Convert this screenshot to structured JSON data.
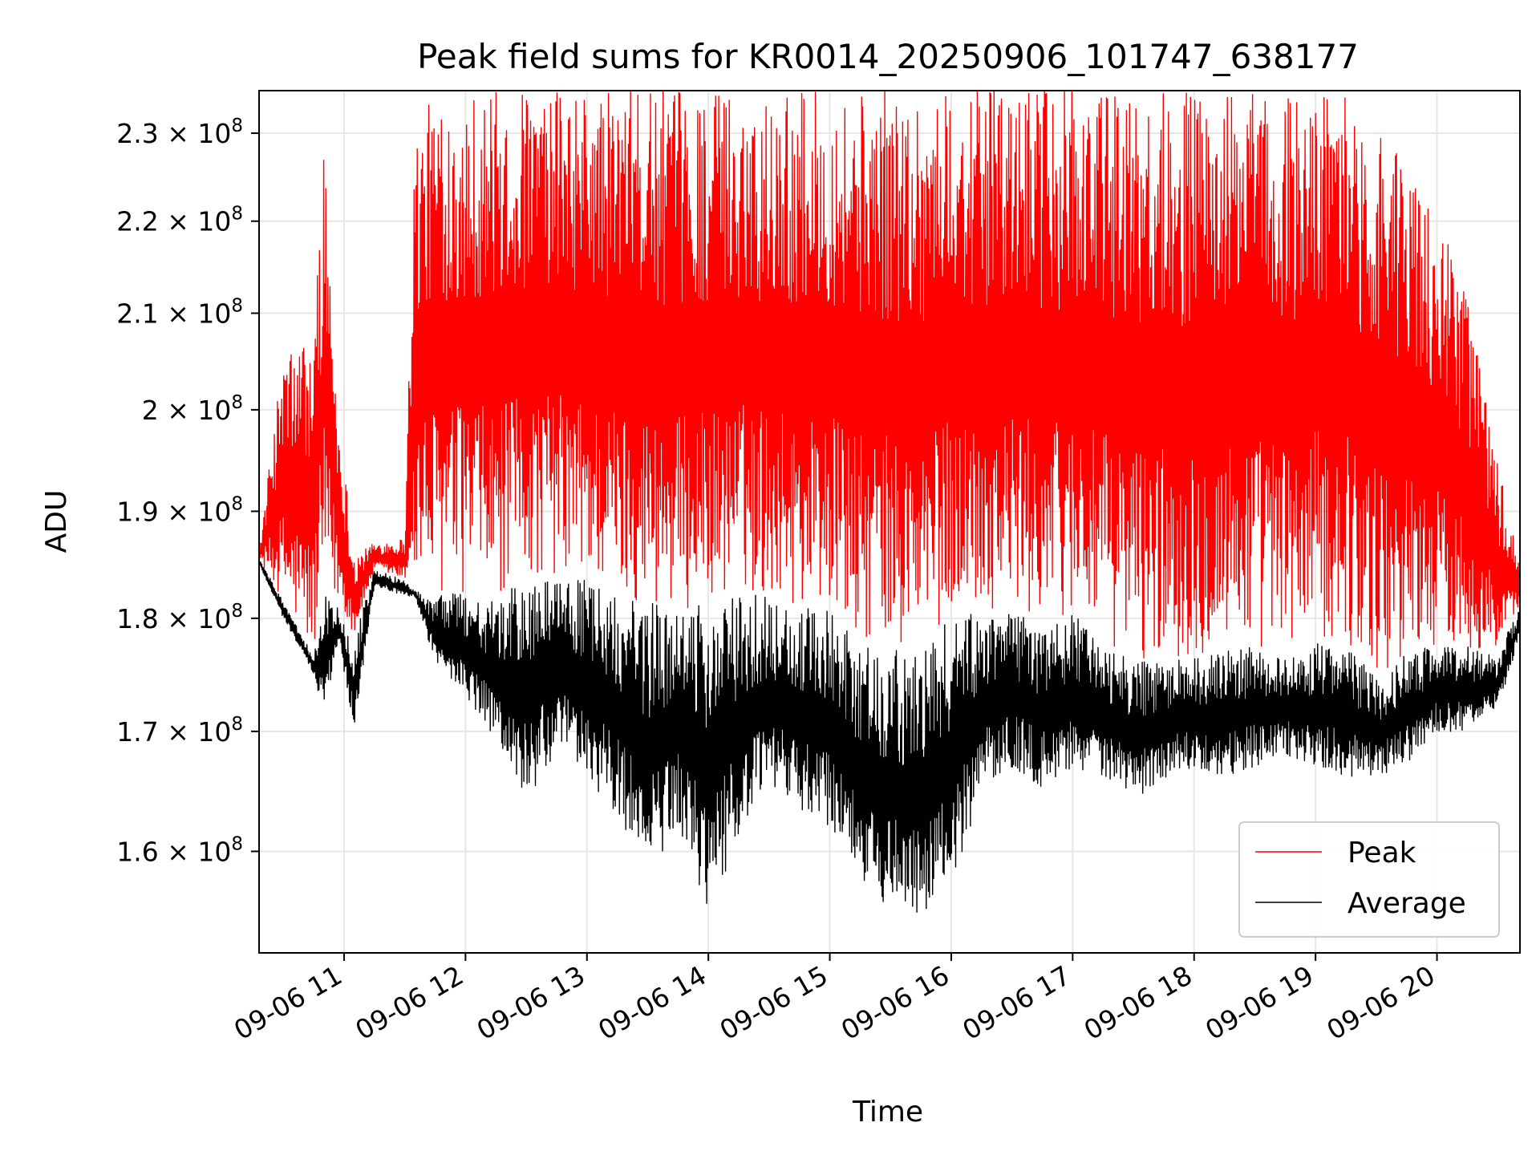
{
  "chart_data": {
    "type": "line",
    "title": "Peak field sums for KR0014_20250906_101747_638177",
    "xlabel": "Time",
    "ylabel": "ADU",
    "y_scale": "log",
    "grid": true,
    "legend_position": "lower right",
    "x_range": [
      "2025-09-06 10:18",
      "2025-09-06 20:41"
    ],
    "ylim": [
      152000000,
      235000000
    ],
    "x_ticks": [
      "09-06 11",
      "09-06 12",
      "09-06 13",
      "09-06 14",
      "09-06 15",
      "09-06 16",
      "09-06 17",
      "09-06 18",
      "09-06 19",
      "09-06 20"
    ],
    "y_ticks": [
      {
        "value": 160000000,
        "mantissa": "1.6",
        "base": "10",
        "exp": "8"
      },
      {
        "value": 170000000,
        "mantissa": "1.7",
        "base": "10",
        "exp": "8"
      },
      {
        "value": 180000000,
        "mantissa": "1.8",
        "base": "10",
        "exp": "8"
      },
      {
        "value": 190000000,
        "mantissa": "1.9",
        "base": "10",
        "exp": "8"
      },
      {
        "value": 200000000,
        "mantissa": "2",
        "base": "10",
        "exp": "8"
      },
      {
        "value": 210000000,
        "mantissa": "2.1",
        "base": "10",
        "exp": "8"
      },
      {
        "value": 220000000,
        "mantissa": "2.2",
        "base": "10",
        "exp": "8"
      },
      {
        "value": 230000000,
        "mantissa": "2.3",
        "base": "10",
        "exp": "8"
      }
    ],
    "series": [
      {
        "name": "Peak",
        "color": "#ff0000",
        "x": [
          "10:18",
          "10:30",
          "10:45",
          "10:50",
          "10:57",
          "11:05",
          "11:15",
          "11:30",
          "11:35",
          "11:45",
          "12:00",
          "12:15",
          "12:30",
          "12:45",
          "13:00",
          "13:15",
          "13:30",
          "13:45",
          "14:00",
          "14:15",
          "14:30",
          "14:45",
          "15:00",
          "15:15",
          "15:30",
          "15:45",
          "16:00",
          "16:15",
          "16:30",
          "16:45",
          "17:00",
          "17:15",
          "17:30",
          "17:45",
          "18:00",
          "18:15",
          "18:30",
          "18:45",
          "19:00",
          "19:15",
          "19:30",
          "19:45",
          "20:00",
          "20:15",
          "20:30",
          "20:41"
        ],
        "envelope_low": [
          185500000,
          181500000,
          176500000,
          182500000,
          181500000,
          178500000,
          184500000,
          183500000,
          182500000,
          182000000,
          182500000,
          181500000,
          184000000,
          184000000,
          183500000,
          182000000,
          181500000,
          180500000,
          181500000,
          182500000,
          182000000,
          181000000,
          181000000,
          177500000,
          177500000,
          176500000,
          180500000,
          181000000,
          180500000,
          179500000,
          180500000,
          177500000,
          176500000,
          176000000,
          176500000,
          177000000,
          177500000,
          176500000,
          178000000,
          178000000,
          174500000,
          177000000,
          177500000,
          177500000,
          176500000,
          181500000
        ],
        "envelope_high": [
          186000000,
          206000000,
          208000000,
          229000000,
          200000000,
          186000000,
          187000000,
          187500000,
          230000000,
          235000000,
          235000000,
          235000000,
          235000000,
          235000000,
          235000000,
          235000000,
          235000000,
          235000000,
          235000000,
          235000000,
          235000000,
          235000000,
          235000000,
          235000000,
          235000000,
          235000000,
          235000000,
          235000000,
          235000000,
          235000000,
          235000000,
          235000000,
          235000000,
          235000000,
          235000000,
          235000000,
          235000000,
          235000000,
          235000000,
          235000000,
          232000000,
          226000000,
          220000000,
          213000000,
          195000000,
          184500000
        ]
      },
      {
        "name": "Average",
        "color": "#000000",
        "x": [
          "10:18",
          "10:30",
          "10:45",
          "10:50",
          "10:57",
          "11:05",
          "11:15",
          "11:30",
          "11:35",
          "11:45",
          "12:00",
          "12:15",
          "12:30",
          "12:45",
          "13:00",
          "13:15",
          "13:30",
          "13:45",
          "14:00",
          "14:15",
          "14:30",
          "14:45",
          "15:00",
          "15:15",
          "15:30",
          "15:45",
          "16:00",
          "16:15",
          "16:30",
          "16:45",
          "17:00",
          "17:15",
          "17:30",
          "17:45",
          "18:00",
          "18:15",
          "18:30",
          "18:45",
          "19:00",
          "19:15",
          "19:30",
          "19:45",
          "20:00",
          "20:15",
          "20:30",
          "20:41"
        ],
        "envelope_low": [
          185000000,
          180000000,
          175000000,
          171000000,
          178000000,
          170000000,
          183000000,
          182000000,
          182000000,
          176000000,
          173000000,
          169000000,
          164000000,
          168000000,
          166000000,
          163000000,
          158000000,
          162000000,
          155000000,
          161000000,
          165000000,
          163000000,
          162000000,
          158000000,
          155000000,
          154000000,
          157000000,
          165000000,
          167000000,
          165000000,
          167000000,
          166000000,
          164000000,
          166000000,
          167000000,
          166000000,
          167000000,
          168000000,
          167000000,
          166000000,
          166000000,
          167000000,
          170000000,
          170000000,
          172000000,
          178000000
        ],
        "envelope_high": [
          185500000,
          181500000,
          176500000,
          182500000,
          181000000,
          178000000,
          184500000,
          183500000,
          182500000,
          182000000,
          182500000,
          181500000,
          184000000,
          184000000,
          183500000,
          182000000,
          181500000,
          180500000,
          181500000,
          182500000,
          182000000,
          181000000,
          181000000,
          177500000,
          177500000,
          176500000,
          180500000,
          181000000,
          180500000,
          179500000,
          180500000,
          177500000,
          176500000,
          176000000,
          176500000,
          177000000,
          177500000,
          176500000,
          178000000,
          178000000,
          174500000,
          177000000,
          177500000,
          177500000,
          176500000,
          181500000
        ]
      }
    ]
  }
}
